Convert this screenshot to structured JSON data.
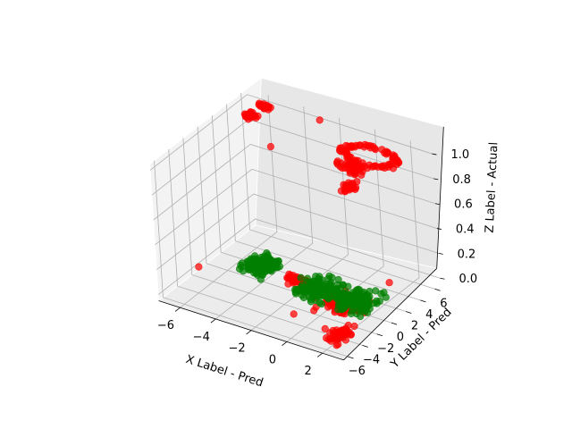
{
  "chart_data": {
    "type": "scatter",
    "projection": "3d",
    "title": "",
    "xlabel": "X Label - Pred",
    "ylabel": "Y Label - Pred",
    "zlabel": "Z Label - Actual",
    "xlim": [
      -7.2,
      3.2
    ],
    "ylim": [
      -6.6,
      6.8
    ],
    "zlim": [
      -0.05,
      1.05
    ],
    "x_ticks": [
      -6,
      -4,
      -2,
      0,
      2
    ],
    "y_ticks": [
      -6,
      -4,
      -2,
      0,
      2,
      4,
      6
    ],
    "z_ticks": [
      0.0,
      0.2,
      0.4,
      0.6,
      0.8,
      1.0
    ],
    "x_tick_labels": [
      "−6",
      "−4",
      "−2",
      "0",
      "2"
    ],
    "y_tick_labels": [
      "−6",
      "−4",
      "−2",
      "0",
      "2",
      "4",
      "6"
    ],
    "z_tick_labels": [
      "0.0",
      "0.2",
      "0.4",
      "0.6",
      "0.8",
      "1.0"
    ],
    "grid": true,
    "series": [
      {
        "color": "#ff0000",
        "clusters": [
          {
            "kind": "blob",
            "count": 26,
            "x": [
              -6.4,
              -5.4
            ],
            "y": [
              5.6,
              6.4
            ],
            "z": [
              1.0,
              1.0
            ]
          },
          {
            "kind": "blob",
            "count": 24,
            "x": [
              -6.5,
              -5.5
            ],
            "y": [
              3.5,
              5.0
            ],
            "z": [
              1.0,
              1.0
            ]
          },
          {
            "kind": "ring",
            "count": 70,
            "x": [
              -0.8,
              2.4
            ],
            "y": [
              2.6,
              5.4
            ],
            "z": [
              1.0,
              1.0
            ]
          },
          {
            "kind": "blob",
            "count": 45,
            "x": [
              -0.3,
              1.7
            ],
            "y": [
              0.8,
              3.0
            ],
            "z": [
              1.0,
              1.0
            ]
          },
          {
            "kind": "blob",
            "count": 24,
            "x": [
              0.9,
              2.2
            ],
            "y": [
              -1.8,
              0.5
            ],
            "z": [
              1.0,
              1.0
            ]
          },
          {
            "kind": "blob",
            "count": 70,
            "x": [
              -1.0,
              2.6
            ],
            "y": [
              -2.8,
              2.2
            ],
            "z": [
              0.0,
              0.0
            ]
          },
          {
            "kind": "blob",
            "count": 40,
            "x": [
              1.3,
              2.9
            ],
            "y": [
              -6.1,
              -2.4
            ],
            "z": [
              0.0,
              0.0
            ]
          },
          {
            "kind": "blob",
            "count": 40,
            "x": [
              -3.4,
              -1.4
            ],
            "y": [
              -0.4,
              2.2
            ],
            "z": [
              0.0,
              0.0
            ]
          }
        ],
        "points": [
          {
            "x": -3.6,
            "y": 1.2,
            "z": 1.0
          },
          {
            "x": -3.0,
            "y": 6.5,
            "z": 1.0
          },
          {
            "x": 2.4,
            "y": 3.4,
            "z": 1.0
          },
          {
            "x": -7.0,
            "y": -1.5,
            "z": 0.0
          },
          {
            "x": 1.2,
            "y": -4.2,
            "z": 0.0
          },
          {
            "x": 2.0,
            "y": -3.6,
            "z": 0.0
          },
          {
            "x": 2.5,
            "y": -5.8,
            "z": 0.0
          },
          {
            "x": -0.8,
            "y": -3.6,
            "z": 0.0
          },
          {
            "x": 1.4,
            "y": 4.2,
            "z": 0.0
          }
        ]
      },
      {
        "color": "#008000",
        "clusters": [
          {
            "kind": "blob",
            "count": 140,
            "x": [
              -6.0,
              -3.5
            ],
            "y": [
              -1.0,
              3.5
            ],
            "z": [
              0.0,
              0.0
            ]
          },
          {
            "kind": "blob",
            "count": 130,
            "x": [
              -2.6,
              0.4
            ],
            "y": [
              -2.0,
              3.0
            ],
            "z": [
              0.0,
              0.0
            ]
          },
          {
            "kind": "blob",
            "count": 120,
            "x": [
              -0.6,
              2.6
            ],
            "y": [
              -1.6,
              3.0
            ],
            "z": [
              0.0,
              0.0
            ]
          }
        ],
        "points": []
      }
    ]
  }
}
